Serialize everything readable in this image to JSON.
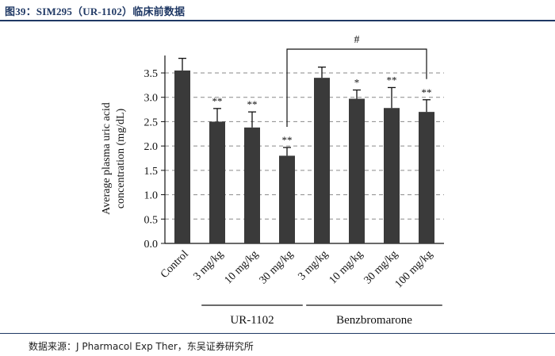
{
  "header": {
    "title": "图39：SIM295（UR-1102）临床前数据"
  },
  "footer": {
    "source": "数据来源：J Pharmacol Exp Ther，东吴证券研究所"
  },
  "chart_data": {
    "type": "bar",
    "ylabel": "Average plasma uric acid concentration (mg/dL)",
    "ylabel_lines": [
      "Average plasma uric acid",
      "concentration (mg/dL)"
    ],
    "ylim": [
      0,
      3.5
    ],
    "yticks": [
      "0.0",
      "0.5",
      "1.0",
      "1.5",
      "2.0",
      "2.5",
      "3.0",
      "3.5"
    ],
    "grid": "horizontal dashed",
    "categories": [
      "Control",
      "3 mg/kg",
      "10 mg/kg",
      "30 mg/kg",
      "3 mg/kg",
      "10 mg/kg",
      "30 mg/kg",
      "100 mg/kg"
    ],
    "values": [
      3.55,
      2.5,
      2.38,
      1.8,
      3.4,
      2.97,
      2.78,
      2.7
    ],
    "errors": [
      0.25,
      0.27,
      0.32,
      0.17,
      0.22,
      0.18,
      0.42,
      0.25
    ],
    "significance": [
      "",
      "**",
      "**",
      "**",
      "",
      "*",
      "**",
      "**"
    ],
    "groups": [
      {
        "label": "UR-1102",
        "from": 1,
        "to": 3
      },
      {
        "label": "Benzbromarone",
        "from": 4,
        "to": 7
      }
    ],
    "bracket": {
      "label": "#",
      "from": 3,
      "to": 7
    },
    "bar_color": "#3a3a3a"
  }
}
